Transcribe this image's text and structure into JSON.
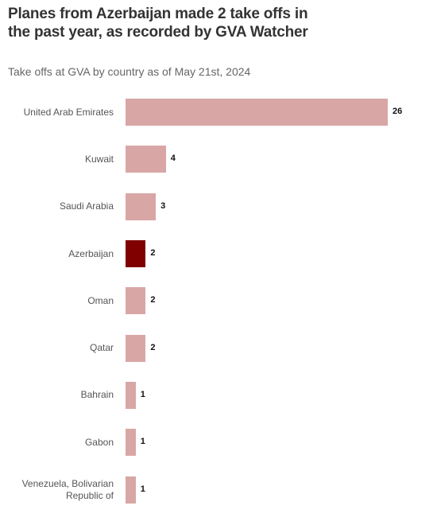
{
  "chart_data": {
    "type": "bar",
    "orientation": "horizontal",
    "title": "Planes from Azerbaijan made 2 take offs in the past year, as recorded by GVA Watcher",
    "subtitle": "Take offs at GVA by country as of May 21st, 2024",
    "categories": [
      "United Arab Emirates",
      "Kuwait",
      "Saudi Arabia",
      "Azerbaijan",
      "Oman",
      "Qatar",
      "Bahrain",
      "Gabon",
      "Venezuela, Bolivarian Republic of"
    ],
    "values": [
      26,
      4,
      3,
      2,
      2,
      2,
      1,
      1,
      1
    ],
    "colors": [
      "#d9a6a6",
      "#d9a6a6",
      "#d9a6a6",
      "#800000",
      "#d9a6a6",
      "#d9a6a6",
      "#d9a6a6",
      "#d9a6a6",
      "#d9a6a6"
    ]
  }
}
